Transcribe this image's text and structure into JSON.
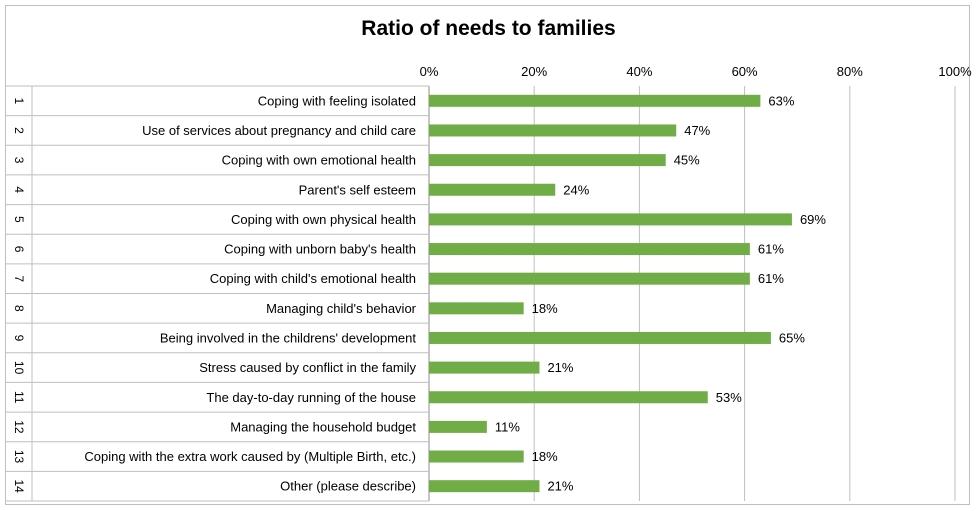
{
  "chart_data": {
    "type": "bar",
    "orientation": "horizontal",
    "title": "Ratio of needs to families",
    "xlabel": "",
    "ylabel": "",
    "xlim": [
      0,
      100
    ],
    "x_ticks": [
      "0%",
      "20%",
      "40%",
      "60%",
      "80%",
      "100%"
    ],
    "grid": true,
    "legend": "none",
    "bar_color": "#70ad47",
    "numbers": [
      "1",
      "2",
      "3",
      "4",
      "5",
      "6",
      "7",
      "8",
      "9",
      "10",
      "11",
      "12",
      "13",
      "14"
    ],
    "categories": [
      "Coping with feeling isolated",
      "Use of services about pregnancy and child care",
      "Coping with own emotional health",
      "Parent's self esteem",
      "Coping with own physical health",
      "Coping with unborn baby's health",
      "Coping with child's emotional health",
      "Managing child's behavior",
      "Being involved in the childrens' development",
      "Stress caused by conflict in the family",
      "The day-to-day running of the house",
      "Managing the household budget",
      "Coping with the extra work caused by  (Multiple Birth, etc.)",
      "Other (please describe)"
    ],
    "values": [
      63,
      47,
      45,
      24,
      69,
      61,
      61,
      18,
      65,
      21,
      53,
      11,
      18,
      21
    ],
    "value_labels": [
      "63%",
      "47%",
      "45%",
      "24%",
      "69%",
      "61%",
      "61%",
      "18%",
      "65%",
      "21%",
      "53%",
      "11%",
      "18%",
      "21%"
    ]
  }
}
